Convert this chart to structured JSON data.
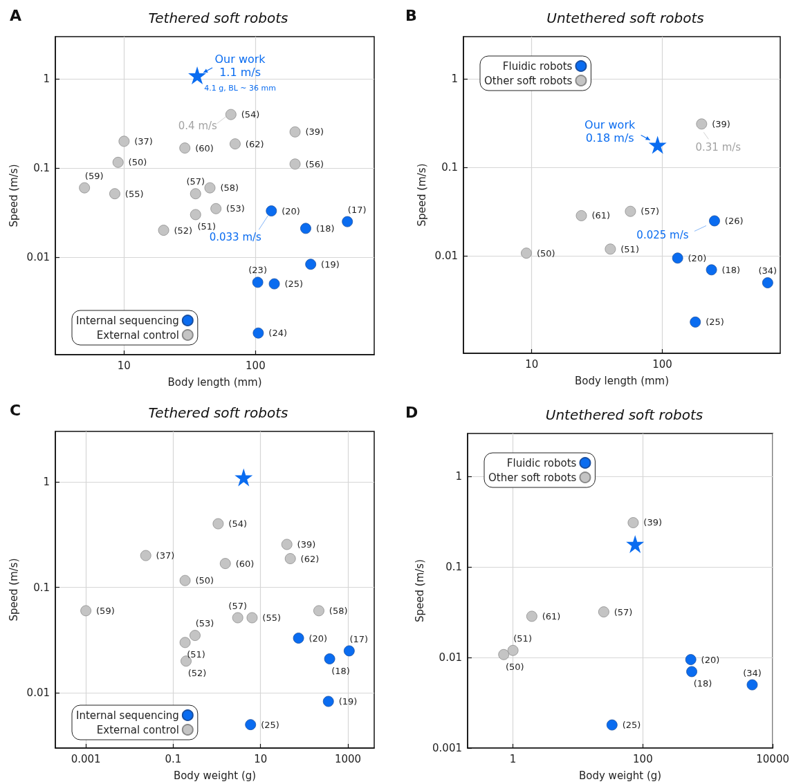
{
  "chart_data": [
    {
      "type": "scatter",
      "title": "Tethered soft robots",
      "xlabel": "Body length (mm)",
      "ylabel": "Speed (m/s)",
      "log": "xy",
      "xlim": [
        3,
        800
      ],
      "ylim": [
        0.0008,
        3
      ],
      "xticks": [
        10,
        100
      ],
      "yticks": [
        0.01,
        0.1,
        1
      ],
      "grid": true,
      "legend": "bottom left",
      "annotations": [
        "A",
        {
          "text": "Our work\n1.1 m/s",
          "x": 36,
          "y": 1.1
        },
        {
          "text": "4.1 g, BL ~ 36 mm",
          "x": 36,
          "y": 1.1
        },
        {
          "text": "0.4 m/s",
          "x": 65,
          "y": 0.4
        },
        {
          "text": "0.033 m/s",
          "x": 132,
          "y": 0.033
        },
        {
          "text": "(20)",
          "x": 132,
          "y": 0.033
        },
        {
          "text": "(17)",
          "x": 500,
          "y": 0.025
        },
        {
          "text": "(18)",
          "x": 241,
          "y": 0.021
        },
        {
          "text": "(19)",
          "x": 263,
          "y": 0.0083
        },
        {
          "text": "(23)",
          "x": 104,
          "y": 0.0052
        },
        {
          "text": "(25)",
          "x": 139,
          "y": 0.005
        },
        {
          "text": "(24)",
          "x": 105,
          "y": 0.0014
        },
        {
          "text": "(54)",
          "x": 65,
          "y": 0.4
        },
        {
          "text": "(39)",
          "x": 200,
          "y": 0.255
        },
        {
          "text": "(37)",
          "x": 10,
          "y": 0.2
        },
        {
          "text": "(60)",
          "x": 29,
          "y": 0.168
        },
        {
          "text": "(62)",
          "x": 70,
          "y": 0.187
        },
        {
          "text": "(50)",
          "x": 9,
          "y": 0.116
        },
        {
          "text": "(56)",
          "x": 200,
          "y": 0.111
        },
        {
          "text": "(59)",
          "x": 5,
          "y": 0.06
        },
        {
          "text": "(55)",
          "x": 8.5,
          "y": 0.0515
        },
        {
          "text": "(57)",
          "x": 35,
          "y": 0.0515
        },
        {
          "text": "(58)",
          "x": 45,
          "y": 0.06
        },
        {
          "text": "(53)",
          "x": 50,
          "y": 0.035
        },
        {
          "text": "(51)",
          "x": 35,
          "y": 0.03
        },
        {
          "text": "(52)",
          "x": 20,
          "y": 0.02
        }
      ],
      "series": [
        {
          "name": "Internal sequencing",
          "color": "#0a6cf0",
          "marker": "circle",
          "x": [
            132,
            500,
            241,
            263,
            104,
            139,
            105
          ],
          "values": [
            0.033,
            0.025,
            0.021,
            0.0083,
            0.0052,
            0.005,
            0.0014
          ]
        },
        {
          "name": "External control",
          "color": "#c4c4c4",
          "marker": "circle",
          "x": [
            65,
            200,
            10,
            29,
            70,
            9,
            200,
            5,
            8.5,
            35,
            45,
            50,
            35,
            20
          ],
          "values": [
            0.4,
            0.255,
            0.2,
            0.168,
            0.187,
            0.116,
            0.111,
            0.06,
            0.0515,
            0.0515,
            0.06,
            0.035,
            0.03,
            0.02
          ]
        },
        {
          "color": "#0a6cf0",
          "marker": "star",
          "x": [
            36
          ],
          "values": [
            1.1
          ]
        }
      ]
    },
    {
      "type": "scatter",
      "title": "Untethered soft robots",
      "xlabel": "Body length (mm)",
      "ylabel": "Speed (m/s)",
      "log": "xy",
      "xlim": [
        3,
        800
      ],
      "ylim": [
        0.0008,
        3
      ],
      "xticks": [
        10,
        100
      ],
      "yticks": [
        0.01,
        0.1,
        1
      ],
      "grid": true,
      "legend": "top left",
      "annotations": [
        "B",
        {
          "text": "Our work\n0.18 m/s",
          "x": 92,
          "y": 0.18
        },
        {
          "text": "0.31 m/s",
          "x": 200,
          "y": 0.31
        },
        {
          "text": "0.025 m/s",
          "x": 251,
          "y": 0.025
        },
        {
          "text": "(26)",
          "x": 251,
          "y": 0.025
        },
        {
          "text": "(20)",
          "x": 131,
          "y": 0.0095
        },
        {
          "text": "(18)",
          "x": 238,
          "y": 0.007
        },
        {
          "text": "(34)",
          "x": 641,
          "y": 0.005
        },
        {
          "text": "(25)",
          "x": 179,
          "y": 0.0018
        },
        {
          "text": "(39)",
          "x": 200,
          "y": 0.31
        },
        {
          "text": "(61)",
          "x": 24,
          "y": 0.0286
        },
        {
          "text": "(57)",
          "x": 57,
          "y": 0.032
        },
        {
          "text": "(51)",
          "x": 40,
          "y": 0.012
        },
        {
          "text": "(50)",
          "x": 9.1,
          "y": 0.0108
        }
      ],
      "series": [
        {
          "name": "Fluidic robots",
          "color": "#0a6cf0",
          "marker": "circle",
          "x": [
            251,
            131,
            238,
            641,
            179
          ],
          "values": [
            0.025,
            0.0095,
            0.007,
            0.005,
            0.0018
          ]
        },
        {
          "name": "Other soft robots",
          "color": "#c4c4c4",
          "marker": "circle",
          "x": [
            200,
            24,
            57,
            40,
            9.1
          ],
          "values": [
            0.31,
            0.0286,
            0.032,
            0.012,
            0.0108
          ]
        },
        {
          "color": "#0a6cf0",
          "marker": "star",
          "x": [
            92
          ],
          "values": [
            0.18
          ]
        }
      ]
    },
    {
      "type": "scatter",
      "title": "Tethered soft robots",
      "xlabel": "Body weight (g)",
      "ylabel": "Speed (m/s)",
      "log": "xy",
      "xlim": [
        0.0002,
        4000
      ],
      "ylim": [
        0.003,
        3
      ],
      "xticks": [
        0.001,
        0.1,
        10,
        1000
      ],
      "yticks": [
        0.01,
        0.1,
        1
      ],
      "grid": true,
      "legend": "bottom left",
      "annotations": [
        "C",
        {
          "text": "(20)",
          "x": 74,
          "y": 0.033
        },
        {
          "text": "(17)",
          "x": 1070,
          "y": 0.025
        },
        {
          "text": "(18)",
          "x": 382,
          "y": 0.021
        },
        {
          "text": "(19)",
          "x": 357,
          "y": 0.0083
        },
        {
          "text": "(25)",
          "x": 5.9,
          "y": 0.005
        },
        {
          "text": "(54)",
          "x": 1.07,
          "y": 0.4
        },
        {
          "text": "(39)",
          "x": 40,
          "y": 0.255
        },
        {
          "text": "(37)",
          "x": 0.0235,
          "y": 0.2
        },
        {
          "text": "(60)",
          "x": 1.56,
          "y": 0.168
        },
        {
          "text": "(62)",
          "x": 48,
          "y": 0.187
        },
        {
          "text": "(50)",
          "x": 0.187,
          "y": 0.116
        },
        {
          "text": "(59)",
          "x": 0.001,
          "y": 0.06
        },
        {
          "text": "(57)",
          "x": 3,
          "y": 0.0515
        },
        {
          "text": "(55)",
          "x": 6.4,
          "y": 0.0515
        },
        {
          "text": "(58)",
          "x": 216,
          "y": 0.06
        },
        {
          "text": "(53)",
          "x": 0.316,
          "y": 0.035
        },
        {
          "text": "(51)",
          "x": 0.187,
          "y": 0.03
        },
        {
          "text": "(52)",
          "x": 0.197,
          "y": 0.02
        }
      ],
      "series": [
        {
          "name": "Internal sequencing",
          "color": "#0a6cf0",
          "marker": "circle",
          "x": [
            74,
            1070,
            382,
            357,
            5.9
          ],
          "values": [
            0.033,
            0.025,
            0.021,
            0.0083,
            0.005
          ]
        },
        {
          "name": "External control",
          "color": "#c4c4c4",
          "marker": "circle",
          "x": [
            1.07,
            40,
            0.0235,
            1.56,
            48,
            0.187,
            0.001,
            3,
            6.4,
            216,
            0.316,
            0.187,
            0.197
          ],
          "values": [
            0.4,
            0.255,
            0.2,
            0.168,
            0.187,
            0.116,
            0.06,
            0.0515,
            0.0515,
            0.06,
            0.035,
            0.03,
            0.02
          ]
        },
        {
          "color": "#0a6cf0",
          "marker": "star",
          "x": [
            4.1
          ],
          "values": [
            1.1
          ]
        }
      ]
    },
    {
      "type": "scatter",
      "title": "Untethered soft robots",
      "xlabel": "Body weight (g)",
      "ylabel": "Speed (m/s)",
      "log": "xy",
      "xlim": [
        0.2,
        10000
      ],
      "ylim": [
        0.001,
        3
      ],
      "xticks": [
        1,
        100,
        10000
      ],
      "yticks": [
        0.001,
        0.01,
        0.1,
        1
      ],
      "grid": true,
      "legend": "top left",
      "annotations": [
        "D",
        {
          "text": "(20)",
          "x": 547,
          "y": 0.0095
        },
        {
          "text": "(18)",
          "x": 566,
          "y": 0.007
        },
        {
          "text": "(34)",
          "x": 4830,
          "y": 0.005
        },
        {
          "text": "(25)",
          "x": 33.5,
          "y": 0.0018
        },
        {
          "text": "(39)",
          "x": 71,
          "y": 0.31
        },
        {
          "text": "(61)",
          "x": 1.95,
          "y": 0.0286
        },
        {
          "text": "(57)",
          "x": 25,
          "y": 0.032
        },
        {
          "text": "(51)",
          "x": 1.0,
          "y": 0.012
        },
        {
          "text": "(50)",
          "x": 0.72,
          "y": 0.0108
        }
      ],
      "series": [
        {
          "name": "Fluidic robots",
          "color": "#0a6cf0",
          "marker": "circle",
          "x": [
            547,
            566,
            4830,
            33.5
          ],
          "values": [
            0.0095,
            0.007,
            0.005,
            0.0018
          ]
        },
        {
          "name": "Other soft robots",
          "color": "#c4c4c4",
          "marker": "circle",
          "x": [
            71,
            1.95,
            25,
            1.0,
            0.72
          ],
          "values": [
            0.31,
            0.0286,
            0.032,
            0.012,
            0.0108
          ]
        },
        {
          "color": "#0a6cf0",
          "marker": "star",
          "x": [
            76
          ],
          "values": [
            0.18
          ]
        }
      ]
    }
  ]
}
